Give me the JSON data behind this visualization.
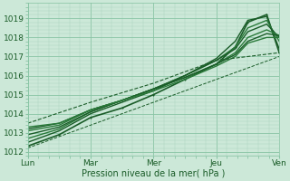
{
  "xlabel": "Pression niveau de la mer( hPa )",
  "ylim": [
    1011.8,
    1019.8
  ],
  "xlim": [
    0,
    4
  ],
  "x_ticks": [
    0,
    1,
    2,
    3,
    4
  ],
  "x_tick_labels": [
    "Lun",
    "Mar",
    "Mer",
    "Jeu",
    "Ven"
  ],
  "y_ticks": [
    1012,
    1013,
    1014,
    1015,
    1016,
    1017,
    1018,
    1019
  ],
  "bg_color": "#cce8d8",
  "grid_color_major": "#88c4a4",
  "grid_color_minor": "#aad4bc",
  "line_color_dark": "#1a5c28",
  "line_color_med": "#2a7a3a",
  "font_color": "#1a5c28",
  "series": [
    {
      "x": [
        0.0,
        0.5,
        1.0,
        1.5,
        2.0,
        2.5,
        3.0,
        3.3,
        3.5,
        3.8,
        4.0
      ],
      "y": [
        1012.3,
        1012.9,
        1013.8,
        1014.3,
        1015.0,
        1015.8,
        1016.6,
        1017.5,
        1018.8,
        1019.2,
        1017.2
      ],
      "style": "-",
      "lw": 1.2,
      "marker": "o",
      "ms": 1.5
    },
    {
      "x": [
        0.0,
        0.5,
        1.0,
        1.5,
        2.0,
        2.5,
        3.0,
        3.3,
        3.5,
        3.8,
        4.0
      ],
      "y": [
        1012.5,
        1013.1,
        1014.0,
        1014.6,
        1015.2,
        1016.0,
        1016.9,
        1017.8,
        1018.9,
        1019.1,
        1017.4
      ],
      "style": "-",
      "lw": 1.0,
      "marker": "",
      "ms": 0
    },
    {
      "x": [
        0.0,
        0.5,
        1.0,
        1.5,
        2.0,
        2.5,
        3.0,
        3.3,
        3.5,
        3.8,
        4.0
      ],
      "y": [
        1012.7,
        1013.2,
        1014.1,
        1014.7,
        1015.3,
        1016.0,
        1016.8,
        1017.5,
        1018.5,
        1018.9,
        1017.8
      ],
      "style": "-",
      "lw": 1.0,
      "marker": "",
      "ms": 0
    },
    {
      "x": [
        0.0,
        0.5,
        1.0,
        1.5,
        2.0,
        2.5,
        3.0,
        3.3,
        3.5,
        3.8,
        4.0
      ],
      "y": [
        1012.9,
        1013.3,
        1014.1,
        1014.7,
        1015.3,
        1016.0,
        1016.8,
        1017.4,
        1018.3,
        1018.7,
        1018.0
      ],
      "style": "-",
      "lw": 1.0,
      "marker": "",
      "ms": 0
    },
    {
      "x": [
        0.0,
        0.5,
        1.0,
        1.5,
        2.0,
        2.5,
        3.0,
        3.3,
        3.5,
        3.8,
        4.0
      ],
      "y": [
        1013.1,
        1013.4,
        1014.2,
        1014.7,
        1015.3,
        1015.9,
        1016.6,
        1017.2,
        1018.0,
        1018.4,
        1018.1
      ],
      "style": "-",
      "lw": 1.0,
      "marker": "",
      "ms": 0
    },
    {
      "x": [
        0.0,
        0.5,
        1.0,
        1.5,
        2.0,
        2.5,
        3.0,
        3.3,
        3.5,
        3.8,
        4.0
      ],
      "y": [
        1013.2,
        1013.5,
        1014.2,
        1014.7,
        1015.3,
        1015.9,
        1016.6,
        1017.1,
        1017.8,
        1018.2,
        1018.1
      ],
      "style": "-",
      "lw": 1.0,
      "marker": "",
      "ms": 0
    },
    {
      "x": [
        0.0,
        0.5,
        1.0,
        1.5,
        2.0,
        2.5,
        3.0,
        3.3,
        3.5,
        3.8,
        4.0
      ],
      "y": [
        1013.3,
        1013.5,
        1014.2,
        1014.7,
        1015.2,
        1015.8,
        1016.5,
        1017.0,
        1017.7,
        1018.0,
        1018.0
      ],
      "style": "-",
      "lw": 1.0,
      "marker": "",
      "ms": 0
    },
    {
      "x": [
        0.0,
        1.0,
        2.0,
        3.0,
        4.0
      ],
      "y": [
        1013.5,
        1014.6,
        1015.6,
        1016.8,
        1017.2
      ],
      "style": "--",
      "lw": 0.8,
      "marker": "",
      "ms": 0
    },
    {
      "x": [
        0.0,
        4.0
      ],
      "y": [
        1012.2,
        1017.0
      ],
      "style": "--",
      "lw": 0.7,
      "marker": "",
      "ms": 0
    }
  ]
}
